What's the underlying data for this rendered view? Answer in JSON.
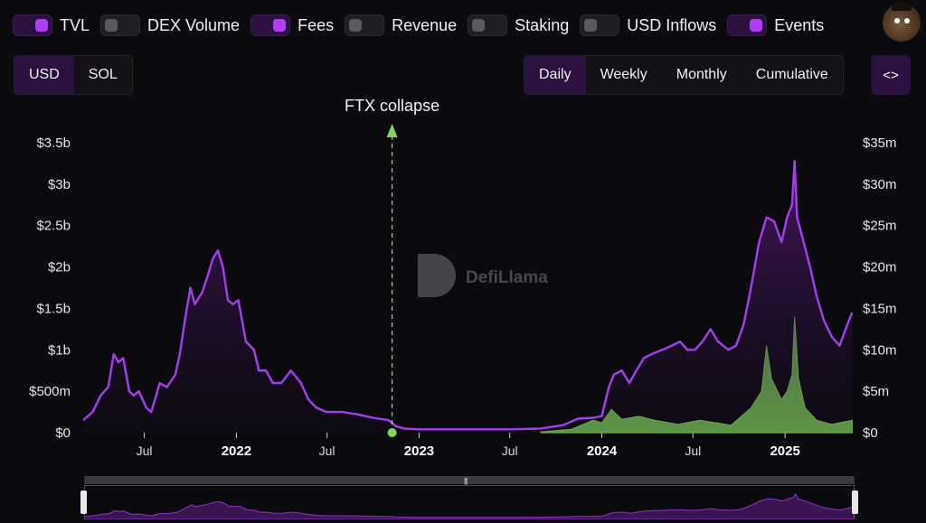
{
  "metric_toggles": [
    {
      "label": "TVL",
      "on": true
    },
    {
      "label": "DEX Volume",
      "on": false
    },
    {
      "label": "Fees",
      "on": true
    },
    {
      "label": "Revenue",
      "on": false
    },
    {
      "label": "Staking",
      "on": false
    },
    {
      "label": "USD Inflows",
      "on": false
    },
    {
      "label": "Events",
      "on": true
    }
  ],
  "currency_options": [
    {
      "label": "USD",
      "active": true
    },
    {
      "label": "SOL",
      "active": false
    }
  ],
  "period_options": [
    {
      "label": "Daily",
      "active": true
    },
    {
      "label": "Weekly",
      "active": false
    },
    {
      "label": "Monthly",
      "active": false
    },
    {
      "label": "Cumulative",
      "active": false
    }
  ],
  "embed_label": "<>",
  "watermark": "DefiLlama",
  "brush_grip": "|||",
  "colors": {
    "tvl": "#a63ef0",
    "fees": "#7fd65a",
    "event": "#7fd65a"
  },
  "chart_data": {
    "type": "line",
    "series": [
      {
        "name": "TVL",
        "axis": "left",
        "points": [
          [
            "2021-03-01",
            0.15
          ],
          [
            "2021-03-20",
            0.25
          ],
          [
            "2021-04-05",
            0.45
          ],
          [
            "2021-04-20",
            0.55
          ],
          [
            "2021-05-01",
            0.95
          ],
          [
            "2021-05-10",
            0.85
          ],
          [
            "2021-05-20",
            0.9
          ],
          [
            "2021-06-01",
            0.5
          ],
          [
            "2021-06-10",
            0.45
          ],
          [
            "2021-06-20",
            0.5
          ],
          [
            "2021-07-05",
            0.3
          ],
          [
            "2021-07-15",
            0.25
          ],
          [
            "2021-08-01",
            0.6
          ],
          [
            "2021-08-15",
            0.55
          ],
          [
            "2021-09-01",
            0.7
          ],
          [
            "2021-09-10",
            0.95
          ],
          [
            "2021-09-20",
            1.35
          ],
          [
            "2021-10-01",
            1.75
          ],
          [
            "2021-10-10",
            1.55
          ],
          [
            "2021-10-25",
            1.7
          ],
          [
            "2021-11-05",
            1.9
          ],
          [
            "2021-11-15",
            2.1
          ],
          [
            "2021-11-25",
            2.2
          ],
          [
            "2021-12-05",
            2.0
          ],
          [
            "2021-12-15",
            1.6
          ],
          [
            "2021-12-25",
            1.55
          ],
          [
            "2022-01-05",
            1.6
          ],
          [
            "2022-01-20",
            1.1
          ],
          [
            "2022-02-05",
            1.0
          ],
          [
            "2022-02-15",
            0.75
          ],
          [
            "2022-03-01",
            0.75
          ],
          [
            "2022-03-15",
            0.6
          ],
          [
            "2022-04-01",
            0.6
          ],
          [
            "2022-04-20",
            0.75
          ],
          [
            "2022-05-10",
            0.6
          ],
          [
            "2022-05-25",
            0.4
          ],
          [
            "2022-06-10",
            0.3
          ],
          [
            "2022-07-01",
            0.25
          ],
          [
            "2022-08-01",
            0.25
          ],
          [
            "2022-09-01",
            0.22
          ],
          [
            "2022-10-01",
            0.18
          ],
          [
            "2022-11-01",
            0.15
          ],
          [
            "2022-11-15",
            0.08
          ],
          [
            "2022-12-01",
            0.05
          ],
          [
            "2023-01-01",
            0.04
          ],
          [
            "2023-03-01",
            0.04
          ],
          [
            "2023-05-01",
            0.04
          ],
          [
            "2023-07-01",
            0.04
          ],
          [
            "2023-09-01",
            0.05
          ],
          [
            "2023-10-15",
            0.09
          ],
          [
            "2023-11-15",
            0.17
          ],
          [
            "2023-12-15",
            0.18
          ],
          [
            "2024-01-01",
            0.2
          ],
          [
            "2024-01-15",
            0.55
          ],
          [
            "2024-01-25",
            0.7
          ],
          [
            "2024-02-10",
            0.75
          ],
          [
            "2024-02-25",
            0.6
          ],
          [
            "2024-03-10",
            0.75
          ],
          [
            "2024-03-25",
            0.9
          ],
          [
            "2024-04-10",
            0.95
          ],
          [
            "2024-05-01",
            1.0
          ],
          [
            "2024-05-20",
            1.05
          ],
          [
            "2024-06-05",
            1.1
          ],
          [
            "2024-06-20",
            1.0
          ],
          [
            "2024-07-05",
            1.0
          ],
          [
            "2024-07-20",
            1.1
          ],
          [
            "2024-08-05",
            1.25
          ],
          [
            "2024-08-20",
            1.1
          ],
          [
            "2024-09-10",
            1.0
          ],
          [
            "2024-09-25",
            1.05
          ],
          [
            "2024-10-10",
            1.3
          ],
          [
            "2024-10-25",
            1.75
          ],
          [
            "2024-11-10",
            2.3
          ],
          [
            "2024-11-25",
            2.6
          ],
          [
            "2024-12-10",
            2.55
          ],
          [
            "2024-12-25",
            2.3
          ],
          [
            "2025-01-05",
            2.6
          ],
          [
            "2025-01-15",
            2.75
          ],
          [
            "2025-01-20",
            3.28
          ],
          [
            "2025-01-25",
            2.6
          ],
          [
            "2025-02-05",
            2.35
          ],
          [
            "2025-02-20",
            2.0
          ],
          [
            "2025-03-05",
            1.65
          ],
          [
            "2025-03-20",
            1.35
          ],
          [
            "2025-04-05",
            1.15
          ],
          [
            "2025-04-20",
            1.05
          ],
          [
            "2025-05-05",
            1.3
          ],
          [
            "2025-05-15",
            1.45
          ]
        ]
      },
      {
        "name": "Fees",
        "axis": "right",
        "points": [
          [
            "2023-09-01",
            0.1
          ],
          [
            "2023-11-01",
            0.4
          ],
          [
            "2023-12-15",
            1.5
          ],
          [
            "2024-01-01",
            1.2
          ],
          [
            "2024-01-20",
            2.8
          ],
          [
            "2024-02-10",
            1.6
          ],
          [
            "2024-03-15",
            2.0
          ],
          [
            "2024-04-15",
            1.5
          ],
          [
            "2024-06-01",
            1.0
          ],
          [
            "2024-07-15",
            1.5
          ],
          [
            "2024-09-15",
            0.9
          ],
          [
            "2024-10-25",
            3.0
          ],
          [
            "2024-11-15",
            5.0
          ],
          [
            "2024-11-25",
            10.5
          ],
          [
            "2024-12-05",
            6.5
          ],
          [
            "2024-12-25",
            4.0
          ],
          [
            "2025-01-05",
            5.0
          ],
          [
            "2025-01-15",
            7.0
          ],
          [
            "2025-01-20",
            14.0
          ],
          [
            "2025-01-28",
            6.5
          ],
          [
            "2025-02-10",
            3.0
          ],
          [
            "2025-03-05",
            1.5
          ],
          [
            "2025-04-05",
            1.0
          ],
          [
            "2025-05-15",
            1.5
          ]
        ]
      }
    ],
    "events": [
      {
        "date": "2022-11-08",
        "label": "FTX collapse"
      }
    ],
    "y_left": {
      "min": 0,
      "max": 3.5,
      "ticks": [
        "$0",
        "$500m",
        "$1b",
        "$1.5b",
        "$2b",
        "$2.5b",
        "$3b",
        "$3.5b"
      ]
    },
    "y_right": {
      "min": 0,
      "max": 35,
      "ticks": [
        "$0",
        "$5m",
        "$10m",
        "$15m",
        "$20m",
        "$25m",
        "$30m",
        "$35m"
      ]
    },
    "x_ticks": [
      {
        "label": "Jul",
        "date": "2021-07-01",
        "year": false
      },
      {
        "label": "2022",
        "date": "2022-01-01",
        "year": true
      },
      {
        "label": "Jul",
        "date": "2022-07-01",
        "year": false
      },
      {
        "label": "2023",
        "date": "2023-01-01",
        "year": true
      },
      {
        "label": "Jul",
        "date": "2023-07-01",
        "year": false
      },
      {
        "label": "2024",
        "date": "2024-01-01",
        "year": true
      },
      {
        "label": "Jul",
        "date": "2024-07-01",
        "year": false
      },
      {
        "label": "2025",
        "date": "2025-01-01",
        "year": true
      }
    ],
    "x_range": [
      "2021-03-01",
      "2025-05-18"
    ],
    "grid": false
  }
}
